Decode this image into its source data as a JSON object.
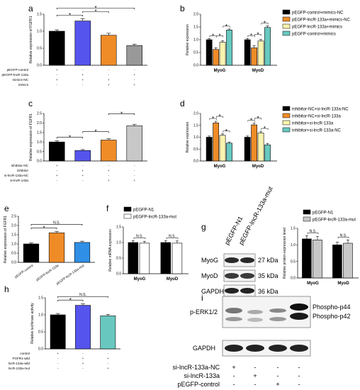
{
  "colors": {
    "black": "#000000",
    "blue": "#5555ee",
    "orange": "#f08c28",
    "gray": "#999999",
    "yellow": "#f8f4b0",
    "teal": "#68c8c0",
    "lightblue": "#2f8fe6",
    "white": "#ffffff",
    "lightgray": "#c8c8c8"
  },
  "panel_labels": [
    "a",
    "b",
    "c",
    "d",
    "e",
    "f",
    "g",
    "h",
    "i"
  ],
  "chart_data": [
    {
      "panel": "a",
      "type": "bar",
      "ylabel": "Relative expression of FGFR1",
      "ylim": [
        0,
        1.5
      ],
      "yticks": [
        "0.0",
        "0.5",
        "1.0",
        "1.5"
      ],
      "values": [
        1.0,
        1.3,
        0.88,
        0.58
      ],
      "errors": [
        0.04,
        0.07,
        0.06,
        0.04
      ],
      "color_keys": [
        "black",
        "blue",
        "orange",
        "gray"
      ],
      "conditions": [
        {
          "label": "pEGFP-control",
          "signs": [
            "+",
            "-",
            "-",
            "-"
          ]
        },
        {
          "label": "pEGFP-lncR-133a",
          "signs": [
            "-",
            "+",
            "-",
            "+"
          ]
        },
        {
          "label": "mimics-NC",
          "signs": [
            "+",
            "+",
            "+",
            "-"
          ]
        },
        {
          "label": "mimics",
          "signs": [
            "-",
            "-",
            "+",
            "+"
          ]
        }
      ],
      "sig": [
        {
          "from": 0,
          "to": 1,
          "label": "*"
        },
        {
          "from": 1,
          "to": 2,
          "label": "*"
        },
        {
          "from": 0,
          "to": 3,
          "label": "*"
        }
      ]
    },
    {
      "panel": "b",
      "type": "bar",
      "ylabel": "Relative expression",
      "ylim": [
        0,
        2.0
      ],
      "yticks": [
        "0.0",
        "0.5",
        "1.0",
        "1.5",
        "2.0"
      ],
      "categories": [
        "MyoG",
        "MyoD"
      ],
      "series": [
        {
          "name": "pEGFP-control+mimics-NC",
          "color_key": "black",
          "values": [
            1.0,
            1.0
          ],
          "errors": [
            0.04,
            0.05
          ]
        },
        {
          "name": "pEGFP-lncR-133a+mimics-NC",
          "color_key": "orange",
          "values": [
            0.62,
            0.68
          ],
          "errors": [
            0.07,
            0.08
          ]
        },
        {
          "name": "pEGFP-lncR-133a+mimics",
          "color_key": "yellow",
          "values": [
            0.9,
            0.95
          ],
          "errors": [
            0.06,
            0.06
          ]
        },
        {
          "name": "pEGFP-control+mimics",
          "color_key": "teal",
          "values": [
            1.38,
            1.48
          ],
          "errors": [
            0.04,
            0.06
          ]
        }
      ],
      "sig": [
        {
          "cat": 0,
          "from": 0,
          "to": 1
        },
        {
          "cat": 0,
          "from": 1,
          "to": 2
        },
        {
          "cat": 0,
          "from": 2,
          "to": 3
        },
        {
          "cat": 1,
          "from": 0,
          "to": 1
        },
        {
          "cat": 1,
          "from": 1,
          "to": 2
        },
        {
          "cat": 1,
          "from": 2,
          "to": 3
        }
      ],
      "legend": "right"
    },
    {
      "panel": "c",
      "type": "bar",
      "ylabel": "Relative expression of FGFR1",
      "ylim": [
        0,
        2.5
      ],
      "yticks": [
        "0.0",
        "0.5",
        "1.0",
        "1.5",
        "2.0",
        "2.5"
      ],
      "values": [
        1.0,
        0.55,
        1.1,
        1.85
      ],
      "errors": [
        0.06,
        0.05,
        0.07,
        0.08
      ],
      "color_keys": [
        "black",
        "blue",
        "orange",
        "lightgray"
      ],
      "conditions": [
        {
          "label": "inhibitor-NC",
          "signs": [
            "+",
            "-",
            "-",
            "-"
          ]
        },
        {
          "label": "inhibitor",
          "signs": [
            "-",
            "+",
            "+",
            "-"
          ]
        },
        {
          "label": "si-lncR-133a-NC",
          "signs": [
            "+",
            "+",
            "-",
            "-"
          ]
        },
        {
          "label": "si-lncR-133a",
          "signs": [
            "-",
            "-",
            "+",
            "+"
          ]
        }
      ],
      "sig": [
        {
          "from": 0,
          "to": 1,
          "label": "*"
        },
        {
          "from": 1,
          "to": 2,
          "label": "*"
        },
        {
          "from": 2,
          "to": 3,
          "label": "*"
        }
      ]
    },
    {
      "panel": "d",
      "type": "bar",
      "ylabel": "Relative expression",
      "ylim": [
        0,
        2.0
      ],
      "yticks": [
        "0.0",
        "0.5",
        "1.0",
        "1.5",
        "2.0"
      ],
      "categories": [
        "MyoG",
        "MyoD"
      ],
      "series": [
        {
          "name": "inhibitor-NC+si-lncR-133a-NC",
          "color_key": "black",
          "values": [
            1.0,
            1.0
          ],
          "errors": [
            0.05,
            0.05
          ]
        },
        {
          "name": "inhibitor-NC+si-lncR-133a",
          "color_key": "orange",
          "values": [
            1.6,
            1.52
          ],
          "errors": [
            0.07,
            0.07
          ]
        },
        {
          "name": "inhibitor+si-lncR-133a",
          "color_key": "yellow",
          "values": [
            1.08,
            1.18
          ],
          "errors": [
            0.06,
            0.07
          ]
        },
        {
          "name": "inhibitor+si-lncR-133a-NC",
          "color_key": "teal",
          "values": [
            0.75,
            0.68
          ],
          "errors": [
            0.05,
            0.06
          ]
        }
      ],
      "sig": [
        {
          "cat": 0,
          "from": 0,
          "to": 1
        },
        {
          "cat": 0,
          "from": 1,
          "to": 2
        },
        {
          "cat": 0,
          "from": 2,
          "to": 3
        },
        {
          "cat": 1,
          "from": 0,
          "to": 1
        },
        {
          "cat": 1,
          "from": 1,
          "to": 2
        },
        {
          "cat": 1,
          "from": 2,
          "to": 3
        }
      ],
      "legend": "right"
    },
    {
      "panel": "e",
      "type": "bar",
      "ylabel": "Relative expression of FGFR1",
      "ylim": [
        0,
        2.5
      ],
      "yticks": [
        "0.0",
        "0.5",
        "1.0",
        "1.5",
        "2.0",
        "2.5"
      ],
      "categories": [
        "pEGFP-control",
        "pEGFP-lncR-133a",
        "pEGFP-lncR-133a-mut"
      ],
      "values": [
        1.0,
        1.6,
        1.08
      ],
      "errors": [
        0.06,
        0.08,
        0.07
      ],
      "color_keys": [
        "black",
        "orange",
        "lightblue"
      ],
      "sig": [
        {
          "from": 0,
          "to": 1,
          "label": "*"
        },
        {
          "from": 0,
          "to": 2,
          "label": "N.S."
        }
      ]
    },
    {
      "panel": "f",
      "type": "bar",
      "ylabel": "Relative mRNA expression",
      "ylim": [
        0,
        1.5
      ],
      "yticks": [
        "0.0",
        "0.5",
        "1.0",
        "1.5"
      ],
      "categories": [
        "MyoG",
        "MyoD"
      ],
      "series": [
        {
          "name": "pEGFP-N1",
          "color_key": "black",
          "values": [
            1.0,
            1.0
          ],
          "errors": [
            0.06,
            0.06
          ]
        },
        {
          "name": "pEGFP-lncR-133a-mut",
          "color_key": "white",
          "values": [
            0.98,
            0.98
          ],
          "errors": [
            0.06,
            0.07
          ]
        }
      ],
      "sig": [
        {
          "cat": 0,
          "from": 0,
          "to": 1,
          "label": "N.S."
        },
        {
          "cat": 1,
          "from": 0,
          "to": 1,
          "label": "N.S."
        }
      ],
      "legend": "top"
    },
    {
      "panel": "g-bar",
      "type": "bar",
      "ylabel": "Relative protein expression level",
      "ylim": [
        0,
        1.5
      ],
      "yticks": [
        "0.0",
        "0.5",
        "1.0",
        "1.5"
      ],
      "categories": [
        "MyoG",
        "MyoD"
      ],
      "series": [
        {
          "name": "pEGFP-N1",
          "color_key": "black",
          "values": [
            1.18,
            1.0
          ],
          "errors": [
            0.1,
            0.08
          ]
        },
        {
          "name": "pEGFP-lncR-133a-mut",
          "color_key": "lightgray",
          "values": [
            1.15,
            1.05
          ],
          "errors": [
            0.1,
            0.1
          ]
        }
      ],
      "sig": [
        {
          "cat": 0,
          "from": 0,
          "to": 1,
          "label": "N.S."
        },
        {
          "cat": 1,
          "from": 0,
          "to": 1,
          "label": "N.S."
        }
      ],
      "legend": "top"
    },
    {
      "panel": "h",
      "type": "bar",
      "ylabel": "Relative luciferase activity",
      "ylim": [
        0,
        1.5
      ],
      "yticks": [
        "0.0",
        "0.5",
        "1.0",
        "1.5"
      ],
      "values": [
        1.0,
        1.28,
        0.97
      ],
      "errors": [
        0.04,
        0.05,
        0.04
      ],
      "color_keys": [
        "black",
        "blue",
        "teal"
      ],
      "conditions": [
        {
          "label": "control",
          "signs": [
            "+",
            "-",
            "-"
          ]
        },
        {
          "label": "FGFR1-wild",
          "signs": [
            "-",
            "+",
            "+"
          ]
        },
        {
          "label": "lncR-133a-wild",
          "signs": [
            "-",
            "+",
            "-"
          ]
        },
        {
          "label": "lncR-133a-mut",
          "signs": [
            "-",
            "-",
            "+"
          ]
        }
      ],
      "sig": [
        {
          "from": 0,
          "to": 1,
          "label": "*"
        },
        {
          "from": 0,
          "to": 2,
          "label": "N.S."
        }
      ]
    }
  ],
  "blot_g": {
    "lanes": [
      "pEGFP-N1",
      "pEGFP-lncR-133a-mut"
    ],
    "rows": [
      {
        "label": "MyoG",
        "kda": "27 kDa"
      },
      {
        "label": "MyoD",
        "kda": "35 kDa"
      },
      {
        "label": "GAPDH",
        "kda": "36 kDa"
      }
    ]
  },
  "blot_i": {
    "rows": [
      {
        "label": "p-ERK1/2"
      },
      {
        "label": "GAPDH"
      }
    ],
    "right_labels": [
      "Phospho-p44",
      "Phospho-p42"
    ],
    "conditions": [
      {
        "label": "si-lncR-133a-NC",
        "signs": [
          "+",
          "-",
          "-",
          "-"
        ]
      },
      {
        "label": "si-lncR-133a",
        "signs": [
          "-",
          "+",
          "-",
          "-"
        ]
      },
      {
        "label": "pEGFP-control",
        "signs": [
          "-",
          "-",
          "+",
          "-"
        ]
      },
      {
        "label": "pEGFP-lncR-133a",
        "signs": [
          "-",
          "-",
          "-",
          "+"
        ]
      }
    ]
  }
}
